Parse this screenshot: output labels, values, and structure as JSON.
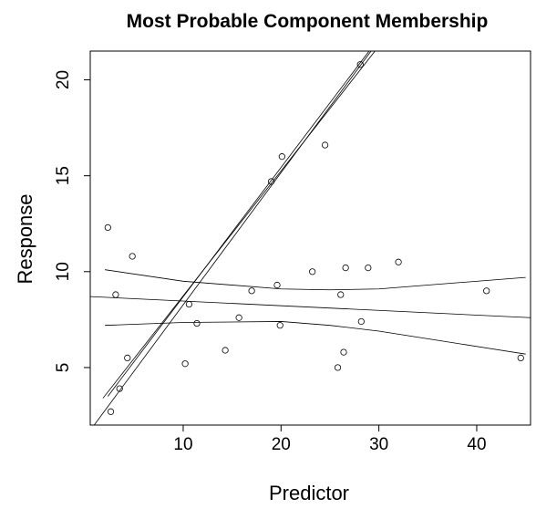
{
  "chart_data": {
    "type": "scatter",
    "title": "Most Probable Component Membership",
    "xlabel": "Predictor",
    "ylabel": "Response",
    "xlim": [
      0.5,
      45.5
    ],
    "ylim": [
      2.0,
      21.5
    ],
    "xticks": [
      10,
      20,
      30,
      40
    ],
    "yticks": [
      5,
      10,
      15,
      20
    ],
    "grid": false,
    "legend": "none",
    "points": [
      {
        "x": 2.3,
        "y": 12.3
      },
      {
        "x": 2.6,
        "y": 2.7
      },
      {
        "x": 3.1,
        "y": 8.8
      },
      {
        "x": 3.5,
        "y": 3.9
      },
      {
        "x": 4.3,
        "y": 5.5
      },
      {
        "x": 4.8,
        "y": 10.8
      },
      {
        "x": 10.2,
        "y": 5.2
      },
      {
        "x": 10.6,
        "y": 8.3
      },
      {
        "x": 11.4,
        "y": 7.3
      },
      {
        "x": 14.3,
        "y": 5.9
      },
      {
        "x": 15.7,
        "y": 7.6
      },
      {
        "x": 17.0,
        "y": 9.0
      },
      {
        "x": 19.0,
        "y": 14.7
      },
      {
        "x": 19.6,
        "y": 9.3
      },
      {
        "x": 19.9,
        "y": 7.2
      },
      {
        "x": 20.1,
        "y": 16.0
      },
      {
        "x": 23.2,
        "y": 10.0
      },
      {
        "x": 24.5,
        "y": 16.6
      },
      {
        "x": 25.8,
        "y": 5.0
      },
      {
        "x": 26.1,
        "y": 8.8
      },
      {
        "x": 26.4,
        "y": 5.8
      },
      {
        "x": 26.6,
        "y": 10.2
      },
      {
        "x": 28.1,
        "y": 20.8
      },
      {
        "x": 28.2,
        "y": 7.4
      },
      {
        "x": 28.9,
        "y": 10.2
      },
      {
        "x": 32.0,
        "y": 10.5
      },
      {
        "x": 41.0,
        "y": 9.0
      },
      {
        "x": 44.5,
        "y": 5.5
      }
    ],
    "series": [
      {
        "role": "fit",
        "x": [
          0.5,
          45.5
        ],
        "y": [
          8.7,
          7.6
        ]
      },
      {
        "role": "band",
        "x": [
          2,
          10,
          20,
          25,
          30,
          35,
          45
        ],
        "y": [
          10.1,
          9.5,
          9.1,
          9.05,
          9.1,
          9.3,
          9.7
        ]
      },
      {
        "role": "band",
        "x": [
          2,
          10,
          20,
          25,
          30,
          35,
          45
        ],
        "y": [
          7.2,
          7.35,
          7.4,
          7.2,
          6.9,
          6.5,
          5.7
        ]
      },
      {
        "role": "fit",
        "x": [
          0.9,
          29.2
        ],
        "y": [
          2.0,
          21.5
        ]
      },
      {
        "role": "band",
        "x": [
          1.8,
          29.6
        ],
        "y": [
          3.4,
          21.5
        ]
      },
      {
        "role": "band",
        "x": [
          2.3,
          29.0
        ],
        "y": [
          3.5,
          21.5
        ]
      }
    ]
  }
}
